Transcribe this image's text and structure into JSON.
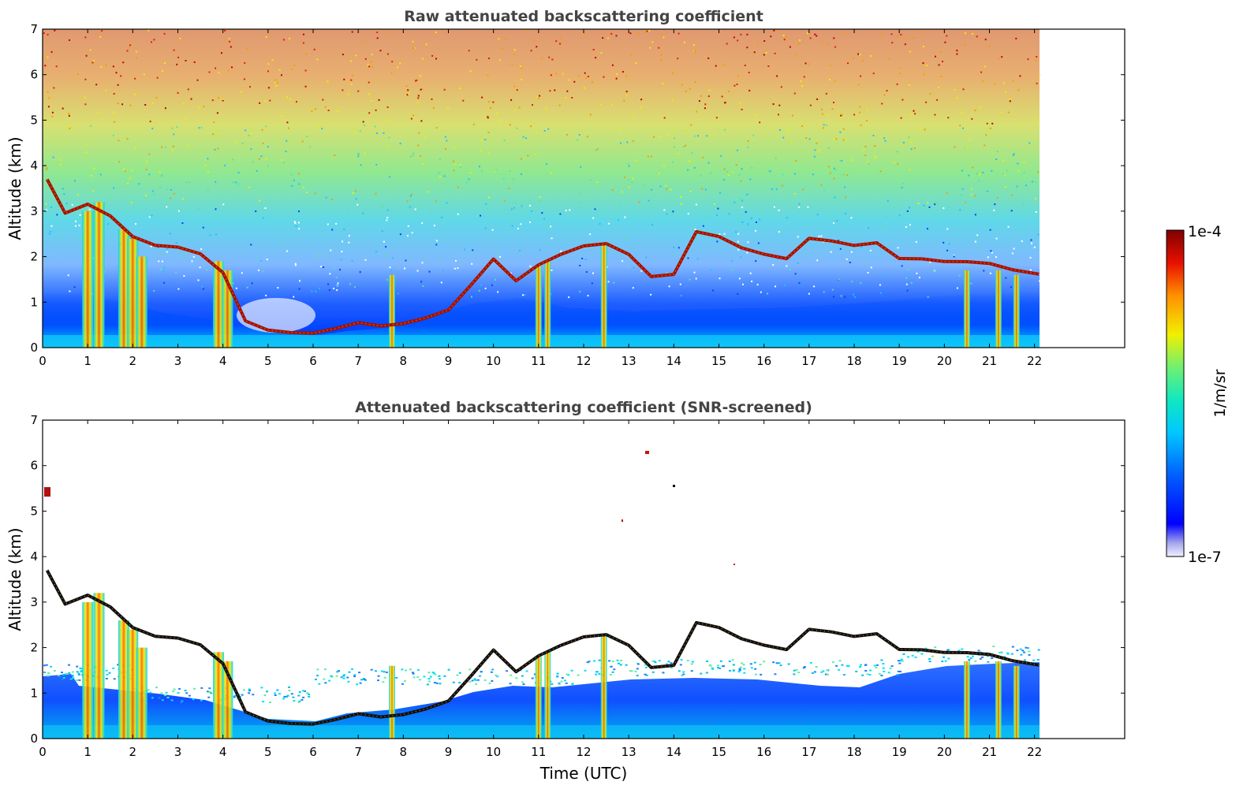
{
  "chart_data": [
    {
      "type": "heatmap",
      "title": "Raw attenuated backscattering coefficient",
      "xlabel": "",
      "ylabel": "Altitude (km)",
      "xlim": [
        0,
        24
      ],
      "ylim": [
        0,
        7
      ],
      "x_ticks": [
        "0",
        "1",
        "2",
        "3",
        "4",
        "5",
        "6",
        "7",
        "8",
        "9",
        "10",
        "11",
        "12",
        "13",
        "14",
        "15",
        "16",
        "17",
        "18",
        "19",
        "20",
        "21",
        "22"
      ],
      "y_ticks": [
        "0",
        "1",
        "2",
        "3",
        "4",
        "5",
        "6",
        "7"
      ],
      "data_extent_x": [
        0,
        22.1
      ],
      "cloud_layer_km": {
        "x": [
          0.1,
          0.5,
          1.0,
          1.5,
          2.0,
          2.5,
          3.0,
          3.5,
          4.0,
          4.5,
          5.0,
          5.5,
          6.0,
          6.5,
          7.0,
          7.5,
          8.0,
          8.5,
          9.0,
          9.5,
          10.0,
          10.5,
          11.0,
          11.5,
          12.0,
          12.5,
          13.0,
          13.5,
          14.0,
          14.5,
          15.0,
          15.5,
          16.0,
          16.5,
          17.0,
          17.5,
          18.0,
          18.5,
          19.0,
          19.5,
          20.0,
          20.5,
          21.0,
          21.5,
          22.1
        ],
        "y": [
          3.7,
          3.0,
          3.2,
          2.9,
          2.4,
          2.2,
          2.2,
          2.1,
          1.7,
          0.6,
          0.35,
          0.28,
          0.3,
          0.45,
          0.6,
          0.5,
          0.5,
          0.6,
          0.8,
          1.4,
          2.0,
          1.5,
          1.8,
          2.0,
          2.2,
          2.3,
          2.1,
          1.6,
          1.6,
          2.5,
          2.4,
          2.2,
          2.1,
          2.0,
          2.4,
          2.3,
          2.2,
          2.3,
          2.0,
          2.0,
          1.9,
          1.85,
          1.8,
          1.7,
          1.65
        ]
      }
    },
    {
      "type": "heatmap",
      "title": "Attenuated backscattering coefficient (SNR-screened)",
      "xlabel": "Time (UTC)",
      "ylabel": "Altitude (km)",
      "xlim": [
        0,
        24
      ],
      "ylim": [
        0,
        7
      ],
      "x_ticks": [
        "0",
        "1",
        "2",
        "3",
        "4",
        "5",
        "6",
        "7",
        "8",
        "9",
        "10",
        "11",
        "12",
        "13",
        "14",
        "15",
        "16",
        "17",
        "18",
        "19",
        "20",
        "21",
        "22"
      ],
      "y_ticks": [
        "0",
        "1",
        "2",
        "3",
        "4",
        "5",
        "6",
        "7"
      ],
      "data_extent_x": [
        0,
        22.1
      ]
    }
  ],
  "colorbar": {
    "label": "1/m/sr",
    "min_label": "1e-7",
    "max_label": "1e-4",
    "scale": "log",
    "colors": [
      "#ffffff",
      "#c8c8f0",
      "#0000ff",
      "#00a0ff",
      "#00e8e8",
      "#60f080",
      "#f0f000",
      "#ff8000",
      "#e00000",
      "#800000"
    ]
  }
}
